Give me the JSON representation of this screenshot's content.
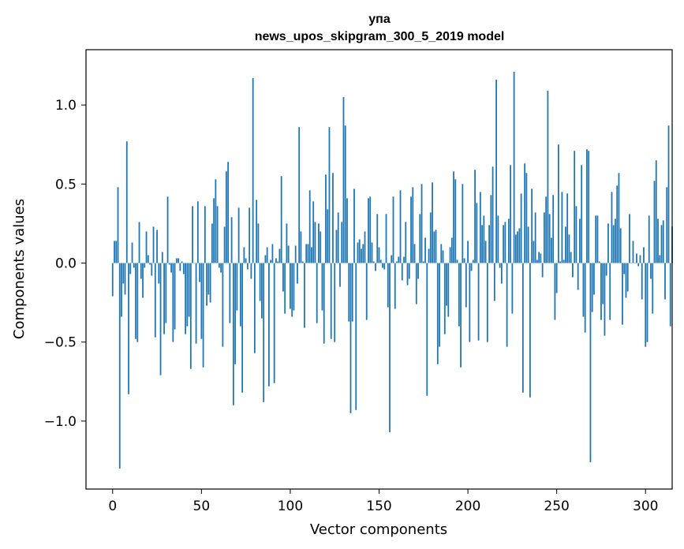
{
  "chart_data": {
    "type": "bar",
    "title": "упа",
    "subtitle": "news_upos_skipgram_300_5_2019 model",
    "xlabel": "Vector components",
    "ylabel": "Components values",
    "xlim": [
      -15,
      315
    ],
    "ylim": [
      -1.43,
      1.35
    ],
    "x_ticks": [
      0,
      50,
      100,
      150,
      200,
      250,
      300
    ],
    "y_ticks": [
      -1.0,
      -0.5,
      0.0,
      0.5,
      1.0
    ],
    "x_tick_labels": [
      "0",
      "50",
      "100",
      "150",
      "200",
      "250",
      "300"
    ],
    "y_tick_labels": [
      "−1.0",
      "−0.5",
      "0.0",
      "0.5",
      "1.0"
    ],
    "bar_color": "#1f77b4",
    "grid": false,
    "values": [
      -0.21,
      0.14,
      0.14,
      0.48,
      -1.3,
      -0.34,
      -0.13,
      -0.2,
      0.77,
      -0.83,
      -0.07,
      0.13,
      -0.03,
      -0.48,
      -0.5,
      0.26,
      -0.1,
      -0.22,
      -0.03,
      0.2,
      0.05,
      -0.01,
      -0.08,
      0.23,
      -0.47,
      0.21,
      -0.13,
      -0.71,
      0.07,
      -0.45,
      -0.38,
      0.42,
      -0.01,
      -0.06,
      -0.5,
      -0.42,
      0.03,
      0.03,
      -0.05,
      0.01,
      -0.07,
      -0.45,
      -0.4,
      -0.34,
      -0.67,
      0.36,
      0.0,
      -0.51,
      0.39,
      -0.12,
      -0.48,
      -0.66,
      0.36,
      -0.27,
      -0.2,
      -0.25,
      0.25,
      0.41,
      0.53,
      0.36,
      -0.03,
      -0.06,
      -0.53,
      0.23,
      0.58,
      0.64,
      -0.38,
      0.29,
      -0.9,
      -0.64,
      -0.3,
      0.35,
      -0.4,
      -0.82,
      0.1,
      0.03,
      -0.04,
      0.35,
      -0.1,
      1.17,
      -0.57,
      0.4,
      0.25,
      -0.24,
      -0.35,
      -0.88,
      0.05,
      0.1,
      -0.78,
      0.02,
      0.12,
      -0.76,
      0.03,
      0.01,
      0.09,
      0.55,
      -0.18,
      -0.32,
      0.25,
      0.11,
      -0.29,
      -0.34,
      -0.3,
      0.11,
      -0.13,
      0.86,
      0.2,
      0.01,
      -0.41,
      0.12,
      0.12,
      0.46,
      0.1,
      0.39,
      0.26,
      -0.38,
      0.25,
      0.2,
      -0.3,
      -0.51,
      0.56,
      0.34,
      0.86,
      -0.48,
      0.57,
      -0.5,
      0.21,
      0.32,
      -0.15,
      0.26,
      1.05,
      0.87,
      0.41,
      -0.37,
      -0.95,
      -0.37,
      0.47,
      -0.93,
      0.13,
      0.15,
      0.09,
      0.12,
      0.2,
      -0.36,
      0.41,
      0.42,
      0.13,
      0.01,
      -0.05,
      0.31,
      0.1,
      0.02,
      -0.03,
      -0.04,
      0.31,
      -0.28,
      -1.07,
      0.05,
      0.42,
      -0.29,
      0.01,
      0.04,
      0.46,
      -0.11,
      0.04,
      0.26,
      -0.14,
      -0.1,
      0.42,
      0.48,
      0.12,
      -0.26,
      -0.1,
      0.31,
      0.5,
      0.01,
      0.16,
      -0.84,
      0.09,
      0.32,
      0.51,
      0.2,
      0.21,
      -0.64,
      -0.53,
      0.12,
      0.08,
      -0.45,
      -0.27,
      -0.34,
      0.1,
      0.16,
      0.58,
      0.53,
      0.02,
      -0.4,
      -0.66,
      0.5,
      0.03,
      -0.28,
      0.14,
      -0.5,
      -0.05,
      0.02,
      0.59,
      0.38,
      -0.49,
      0.45,
      0.24,
      0.3,
      0.14,
      -0.5,
      0.24,
      0.43,
      0.61,
      -0.24,
      1.16,
      0.3,
      -0.03,
      -0.13,
      0.24,
      0.26,
      -0.53,
      0.28,
      0.62,
      -0.32,
      1.21,
      0.18,
      0.2,
      0.22,
      0.44,
      -0.82,
      0.63,
      0.57,
      0.23,
      -0.85,
      0.47,
      0.14,
      0.32,
      0.02,
      0.07,
      0.06,
      -0.09,
      0.32,
      0.42,
      1.09,
      0.31,
      0.16,
      0.43,
      -0.36,
      -0.19,
      0.75,
      0.01,
      0.45,
      0.02,
      0.23,
      0.44,
      0.18,
      0.07,
      -0.09,
      0.71,
      0.36,
      -0.17,
      0.28,
      0.62,
      -0.34,
      -0.44,
      0.72,
      0.71,
      -1.26,
      -0.31,
      -0.2,
      0.3,
      0.3,
      0.01,
      -0.36,
      -0.26,
      -0.46,
      -0.08,
      0.25,
      -0.36,
      0.45,
      0.24,
      0.28,
      0.49,
      0.57,
      0.22,
      -0.39,
      -0.07,
      -0.22,
      -0.18,
      0.31,
      0.0,
      0.14,
      0.0,
      0.06,
      -0.02,
      0.05,
      -0.23,
      0.1,
      -0.53,
      -0.5,
      0.3,
      -0.1,
      -0.32,
      0.52,
      0.65,
      0.28,
      0.05,
      0.24,
      0.27,
      -0.23,
      0.48,
      0.87,
      -0.4,
      0.23
    ]
  }
}
